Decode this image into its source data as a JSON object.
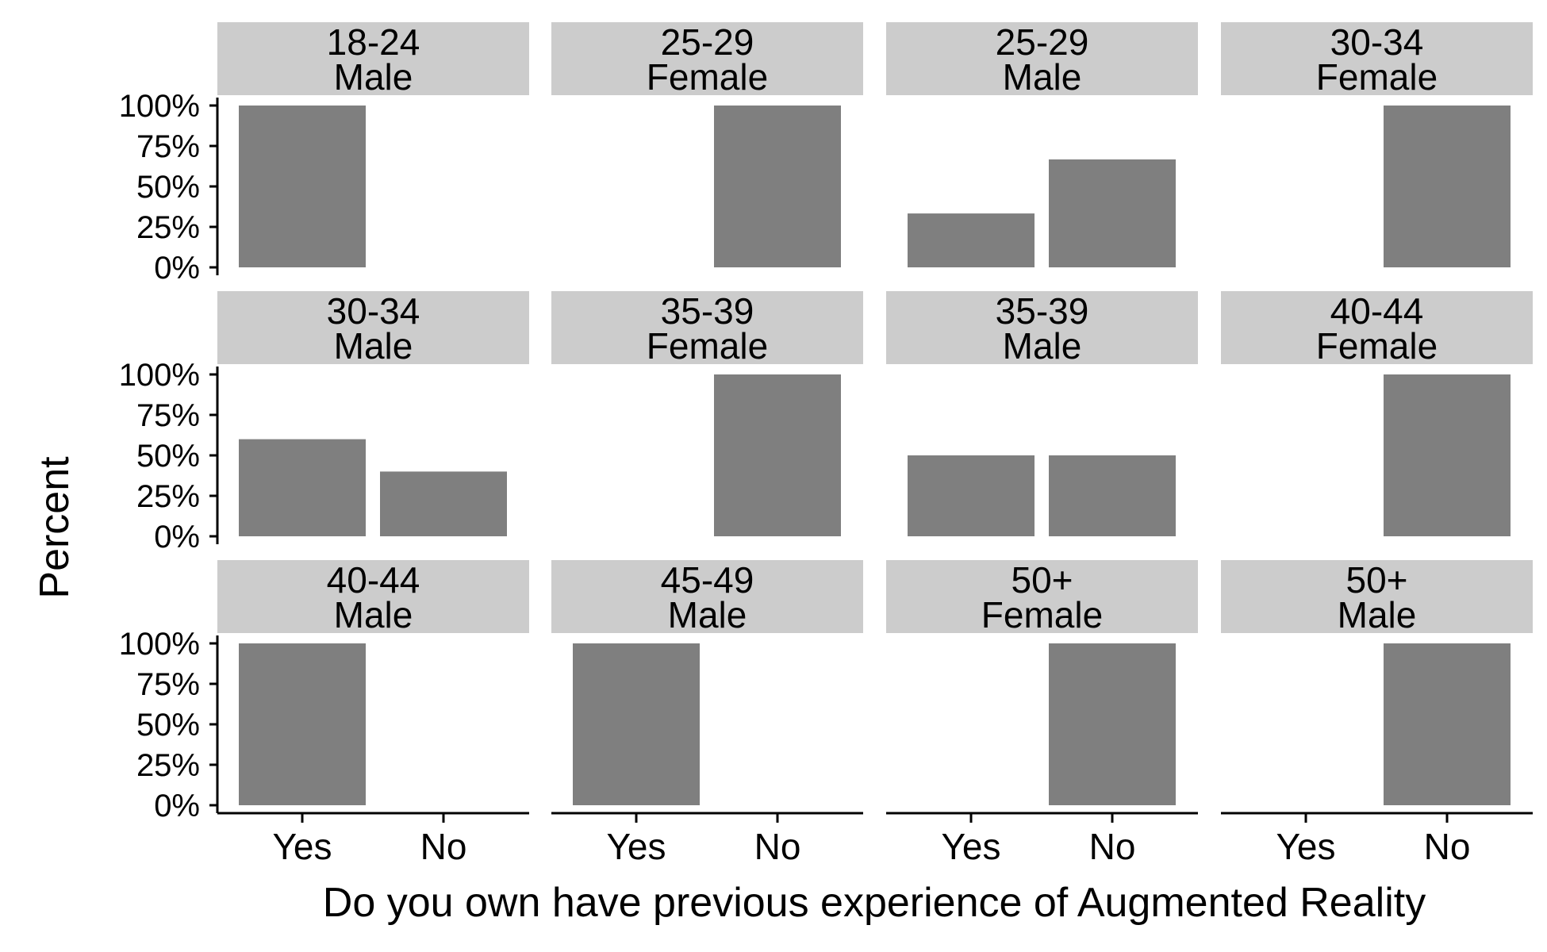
{
  "chart_data": {
    "type": "bar",
    "layout": "facet-grid",
    "xlabel": "Do you own have previous experience of Augmented Reality",
    "ylabel": "Percent",
    "categories": [
      "Yes",
      "No"
    ],
    "ylim": [
      0,
      1
    ],
    "yticks": [
      0,
      0.25,
      0.5,
      0.75,
      1
    ],
    "ytick_labels": [
      "0%",
      "25%",
      "50%",
      "75%",
      "100%"
    ],
    "grid": false,
    "colors": {
      "bar": "#7f7f7f",
      "strip": "#cccccc",
      "axis": "#000000"
    },
    "facets": [
      {
        "age": "18-24",
        "gender": "Male",
        "values": [
          1,
          0
        ]
      },
      {
        "age": "25-29",
        "gender": "Female",
        "values": [
          0,
          1
        ]
      },
      {
        "age": "25-29",
        "gender": "Male",
        "values": [
          0.333,
          0.667
        ]
      },
      {
        "age": "30-34",
        "gender": "Female",
        "values": [
          0,
          1
        ]
      },
      {
        "age": "30-34",
        "gender": "Male",
        "values": [
          0.6,
          0.4
        ]
      },
      {
        "age": "35-39",
        "gender": "Female",
        "values": [
          0,
          1
        ]
      },
      {
        "age": "35-39",
        "gender": "Male",
        "values": [
          0.5,
          0.5
        ]
      },
      {
        "age": "40-44",
        "gender": "Female",
        "values": [
          0,
          1
        ]
      },
      {
        "age": "40-44",
        "gender": "Male",
        "values": [
          1,
          0
        ]
      },
      {
        "age": "45-49",
        "gender": "Male",
        "values": [
          1,
          0
        ]
      },
      {
        "age": "50+",
        "gender": "Female",
        "values": [
          0,
          1
        ]
      },
      {
        "age": "50+",
        "gender": "Male",
        "values": [
          0,
          1
        ]
      }
    ]
  }
}
